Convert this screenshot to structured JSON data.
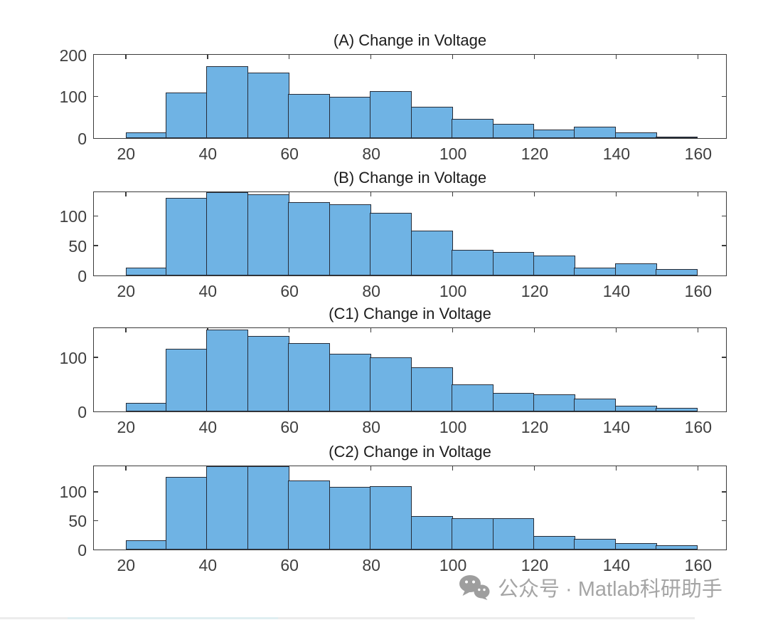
{
  "figure": {
    "background": "#ffffff"
  },
  "colors": {
    "bar_fill": "#6fb3e4",
    "bar_edge": "#262c38",
    "axis": "#3b3b3b",
    "tick_label": "#3f3f3f",
    "title": "#1c1c1c",
    "watermark": "#a5a5a5"
  },
  "chart_data": [
    {
      "type": "bar",
      "subtype": "histogram",
      "title": "(A) Change in Voltage",
      "xlabel": "",
      "ylabel": "",
      "grid": false,
      "legend": null,
      "bin_edges": [
        20,
        30,
        40,
        50,
        60,
        70,
        80,
        90,
        100,
        110,
        120,
        130,
        140,
        150,
        160
      ],
      "counts": [
        14,
        109,
        172,
        158,
        106,
        99,
        112,
        76,
        46,
        35,
        20,
        28,
        13,
        2
      ],
      "xticks": [
        20,
        40,
        60,
        80,
        100,
        120,
        140,
        160
      ],
      "yticks": [
        0,
        100,
        200
      ],
      "xlim": [
        12.2,
        166.9
      ],
      "ylim": [
        0,
        200
      ]
    },
    {
      "type": "bar",
      "subtype": "histogram",
      "title": "(B) Change in Voltage",
      "xlabel": "",
      "ylabel": "",
      "grid": false,
      "legend": null,
      "bin_edges": [
        20,
        30,
        40,
        50,
        60,
        70,
        80,
        90,
        100,
        110,
        120,
        130,
        140,
        150,
        160
      ],
      "counts": [
        13,
        131,
        140,
        136,
        123,
        120,
        105,
        75,
        43,
        39,
        33,
        13,
        20,
        11
      ],
      "xticks": [
        20,
        40,
        60,
        80,
        100,
        120,
        140,
        160
      ],
      "yticks": [
        0,
        50,
        100
      ],
      "xlim": [
        12.2,
        166.9
      ],
      "ylim": [
        0,
        140
      ]
    },
    {
      "type": "bar",
      "subtype": "histogram",
      "title": "(C1) Change in Voltage",
      "xlabel": "",
      "ylabel": "",
      "grid": false,
      "legend": null,
      "bin_edges": [
        20,
        30,
        40,
        50,
        60,
        70,
        80,
        90,
        100,
        110,
        120,
        130,
        140,
        150,
        160
      ],
      "counts": [
        16,
        116,
        152,
        140,
        126,
        106,
        100,
        82,
        50,
        34,
        31,
        24,
        10,
        7
      ],
      "xticks": [
        20,
        40,
        60,
        80,
        100,
        120,
        140,
        160
      ],
      "yticks": [
        0,
        100
      ],
      "xlim": [
        12.2,
        166.9
      ],
      "ylim": [
        0,
        154
      ]
    },
    {
      "type": "bar",
      "subtype": "histogram",
      "title": "(C2) Change in Voltage",
      "xlabel": "",
      "ylabel": "",
      "grid": false,
      "legend": null,
      "bin_edges": [
        20,
        30,
        40,
        50,
        60,
        70,
        80,
        90,
        100,
        110,
        120,
        130,
        140,
        150,
        160
      ],
      "counts": [
        16,
        126,
        144,
        144,
        119,
        108,
        110,
        58,
        54,
        54,
        23,
        19,
        11,
        7
      ],
      "xticks": [
        20,
        40,
        60,
        80,
        100,
        120,
        140,
        160
      ],
      "yticks": [
        0,
        50,
        100
      ],
      "xlim": [
        12.2,
        166.9
      ],
      "ylim": [
        0,
        144
      ]
    }
  ],
  "watermark": {
    "icon": "wechat-icon",
    "text": "公众号 · Matlab科研助手"
  }
}
